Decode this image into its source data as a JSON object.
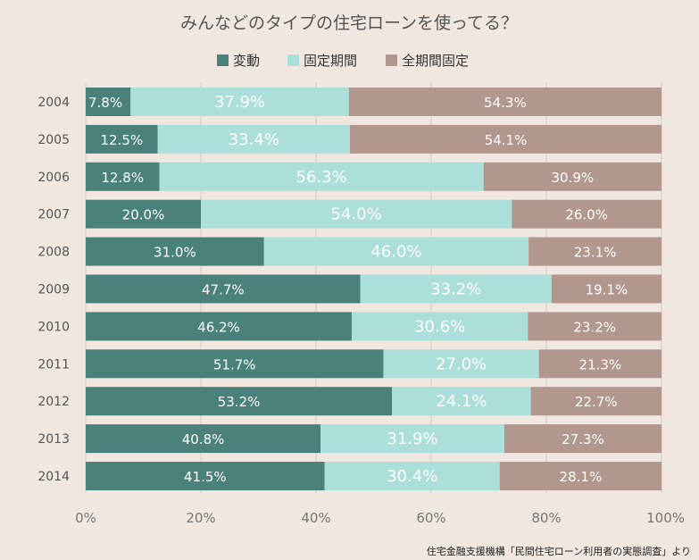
{
  "chart_data": {
    "type": "bar",
    "orientation": "horizontal",
    "stacked": true,
    "title": "みんなどのタイプの住宅ローンを使ってる？",
    "categories": [
      "2004",
      "2005",
      "2006",
      "2007",
      "2008",
      "2009",
      "2010",
      "2011",
      "2012",
      "2013",
      "2014"
    ],
    "series": [
      {
        "name": "変動",
        "color": "#4a827b",
        "values": [
          7.8,
          12.5,
          12.8,
          20.0,
          31.0,
          47.7,
          46.2,
          51.7,
          53.2,
          40.8,
          41.5
        ],
        "labels": [
          "7.8%",
          "12.5%",
          "12.8%",
          "20.0%",
          "31.0%",
          "47.7%",
          "46.2%",
          "51.7%",
          "53.2%",
          "40.8%",
          "41.5%"
        ]
      },
      {
        "name": "固定期間",
        "color": "#acdfd9",
        "values": [
          37.9,
          33.4,
          56.3,
          54.0,
          46.0,
          33.2,
          30.6,
          27.0,
          24.1,
          31.9,
          30.4
        ],
        "labels": [
          "37.9%",
          "33.4%",
          "56.3%",
          "54.0%",
          "46.0%",
          "33.2%",
          "30.6%",
          "27.0%",
          "24.1%",
          "31.9%",
          "30.4%"
        ]
      },
      {
        "name": "全期間固定",
        "color": "#b1978d",
        "values": [
          54.3,
          54.1,
          30.9,
          26.0,
          23.1,
          19.1,
          23.2,
          21.3,
          22.7,
          27.3,
          28.1
        ],
        "labels": [
          "54.3%",
          "54.1%",
          "30.9%",
          "26.0%",
          "23.1%",
          "19.1%",
          "23.2%",
          "21.3%",
          "22.7%",
          "27.3%",
          "28.1%"
        ]
      }
    ],
    "xlim": [
      0,
      100
    ],
    "xticks": [
      "0%",
      "20%",
      "40%",
      "60%",
      "80%",
      "100%"
    ],
    "grid": true,
    "legend_position": "top-center",
    "source": "住宅金融支援機構「民間住宅ローン利用者の実態調査」より"
  }
}
